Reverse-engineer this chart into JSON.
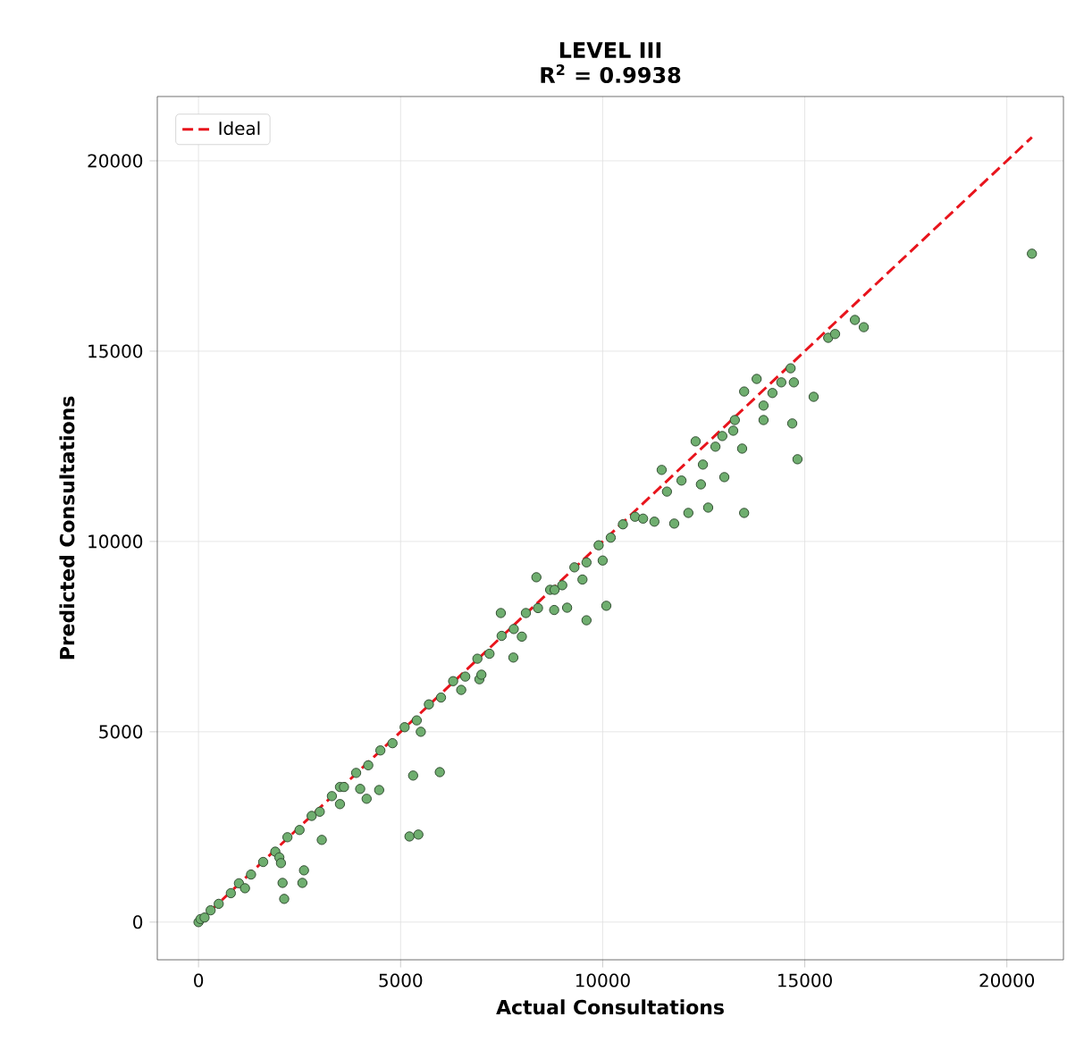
{
  "chart_data": {
    "type": "scatter",
    "title": "LEVEL III",
    "subtitle": "**R$^{2}$ = 0.9938**",
    "xlabel": "Actual Consultations",
    "ylabel": "Predicted Consultations",
    "xlim": [
      -1020,
      21400
    ],
    "ylim": [
      -990,
      21690
    ],
    "xticks": [
      0,
      5000,
      10000,
      15000,
      20000
    ],
    "yticks": [
      0,
      5000,
      10000,
      15000,
      20000
    ],
    "grid": true,
    "legend": "top left",
    "marker": "circle",
    "series": [
      {
        "color": "#6fae6f",
        "x": [
          0,
          50,
          150,
          300,
          500,
          800,
          1000,
          1150,
          1300,
          1600,
          1900,
          2000,
          2040,
          2080,
          2120,
          2200,
          2500,
          2570,
          2610,
          2800,
          3000,
          3050,
          3300,
          3500,
          3500,
          3600,
          3900,
          4000,
          4160,
          4200,
          4470,
          4500,
          4800,
          5100,
          5220,
          5310,
          5400,
          5440,
          5500,
          5700,
          5970,
          6000,
          6300,
          6500,
          6600,
          6900,
          6950,
          7000,
          7200,
          7480,
          7500,
          7790,
          7800,
          8000,
          8100,
          8360,
          8400,
          8700,
          8800,
          8810,
          9000,
          9120,
          9300,
          9500,
          9600,
          9600,
          9900,
          10000,
          10090,
          10200,
          10500,
          10800,
          11000,
          11280,
          11460,
          11590,
          11770,
          11950,
          12120,
          12300,
          12430,
          12480,
          12610,
          12790,
          12960,
          13010,
          13230,
          13270,
          13450,
          13500,
          13500,
          13810,
          13980,
          13980,
          14200,
          14420,
          14650,
          14690,
          14730,
          14820,
          15220,
          15580,
          15750,
          16240,
          16460,
          20620
        ],
        "values": [
          0,
          80,
          120,
          310,
          480,
          760,
          1020,
          890,
          1250,
          1580,
          1850,
          1700,
          1550,
          1030,
          610,
          2230,
          2420,
          1030,
          1360,
          2790,
          2900,
          2160,
          3310,
          3550,
          3100,
          3550,
          3920,
          3500,
          3240,
          4120,
          3470,
          4510,
          4700,
          5120,
          2250,
          3850,
          5300,
          2300,
          5000,
          5720,
          3940,
          5900,
          6330,
          6100,
          6450,
          6920,
          6380,
          6500,
          7050,
          8120,
          7520,
          6950,
          7700,
          7500,
          8120,
          9060,
          8250,
          8730,
          8200,
          8730,
          8850,
          8260,
          9320,
          9000,
          9450,
          7930,
          9900,
          9500,
          8310,
          10100,
          10450,
          10650,
          10600,
          10520,
          11880,
          11310,
          10470,
          11600,
          10750,
          12630,
          11500,
          12020,
          10890,
          12490,
          12770,
          11690,
          12910,
          13190,
          12440,
          13940,
          10750,
          14270,
          13190,
          13570,
          13900,
          14180,
          14550,
          13100,
          14180,
          12160,
          13800,
          15350,
          15450,
          15820,
          15630,
          17560
        ]
      },
      {
        "type": "line",
        "marker": "none",
        "name": "Ideal",
        "color": "#e8141c",
        "line_style": "dashed",
        "x": [
          0,
          20620
        ],
        "values": [
          0,
          20620
        ]
      }
    ]
  }
}
